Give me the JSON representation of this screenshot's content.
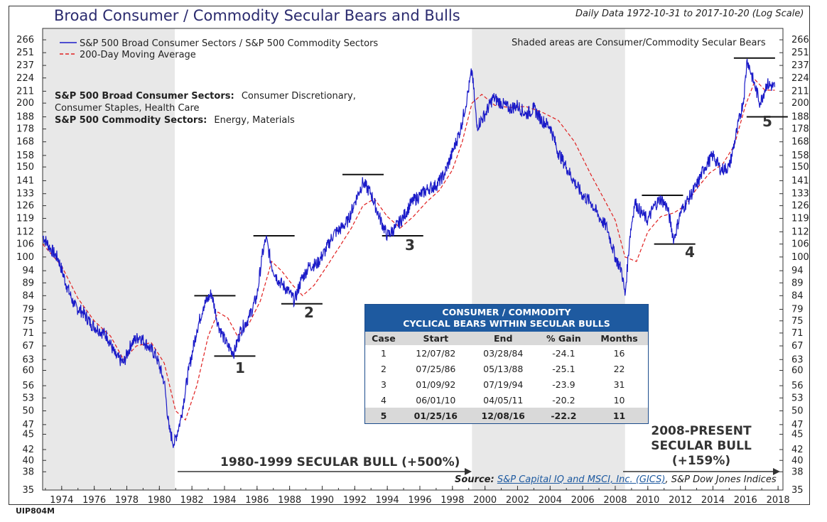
{
  "header": {
    "title": "Broad Consumer / Commodity Secular Bears and Bulls",
    "subtitle": "Daily Data 1972-10-31 to 2017-10-20 (Log Scale)",
    "code": "UIP804M"
  },
  "colors": {
    "series": "#1a1ac8",
    "ma": "#e02020",
    "shade": "#e8e8e8",
    "table_header": "#1e5aa0"
  },
  "legend": {
    "series_label": "S&P 500 Broad Consumer Sectors / S&P 500 Commodity Sectors",
    "ma_label": "200-Day Moving Average",
    "shade_note": "Shaded areas are Consumer/Commodity Secular Bears"
  },
  "definitions": {
    "consumer_label": "S&P 500 Broad Consumer Sectors:",
    "consumer_value": "Consumer Discretionary,",
    "consumer_value2": "Consumer Staples, Health Care",
    "commodity_label": "S&P 500 Commodity Sectors:",
    "commodity_value": "Energy, Materials"
  },
  "annotations": {
    "case_labels": [
      "1",
      "2",
      "3",
      "4",
      "5"
    ],
    "bull1": "1980-1999 SECULAR BULL (+500%)",
    "bull2_line1": "2008-PRESENT",
    "bull2_line2": "SECULAR BULL",
    "bull2_line3": "(+159%)"
  },
  "source": {
    "label": "Source:",
    "link": "S&P Capital IQ and MSCI, Inc. (GICS)",
    "rest": ", S&P Dow Jones Indices"
  },
  "table": {
    "title_line1": "CONSUMER / COMMODITY",
    "title_line2": "CYCLICAL BEARS WITHIN SECULAR BULLS",
    "columns": [
      "Case",
      "Start",
      "End",
      "% Gain",
      "Months"
    ],
    "rows": [
      [
        "1",
        "12/07/82",
        "03/28/84",
        "-24.1",
        "16"
      ],
      [
        "2",
        "07/25/86",
        "05/13/88",
        "-25.1",
        "22"
      ],
      [
        "3",
        "01/09/92",
        "07/19/94",
        "-23.9",
        "31"
      ],
      [
        "4",
        "06/01/10",
        "04/05/11",
        "-20.2",
        "10"
      ],
      [
        "5",
        "01/25/16",
        "12/08/16",
        "-22.2",
        "11"
      ]
    ]
  },
  "chart_data": {
    "type": "line",
    "title": "Broad Consumer / Commodity Secular Bears and Bulls",
    "scale": "log",
    "xlim": [
      1972.83,
      2018.3
    ],
    "ylim": [
      35,
      280
    ],
    "x_ticks": [
      "1974",
      "1976",
      "1978",
      "1980",
      "1982",
      "1984",
      "1986",
      "1988",
      "1990",
      "1992",
      "1994",
      "1996",
      "1998",
      "2000",
      "2002",
      "2004",
      "2006",
      "2008",
      "2010",
      "2012",
      "2014",
      "2016",
      "2018"
    ],
    "y_ticks": [
      "35",
      "38",
      "40",
      "42",
      "45",
      "47",
      "50",
      "53",
      "56",
      "60",
      "63",
      "67",
      "71",
      "75",
      "79",
      "84",
      "89",
      "94",
      "100",
      "106",
      "112",
      "119",
      "126",
      "133",
      "141",
      "150",
      "158",
      "168",
      "178",
      "188",
      "200",
      "211",
      "224",
      "237",
      "251",
      "266"
    ],
    "bear_periods": [
      [
        1972.83,
        1980.95
      ],
      [
        1999.2,
        2008.6
      ]
    ],
    "series": [
      {
        "name": "S&P 500 Broad Consumer Sectors / S&P 500 Commodity Sectors",
        "x": [
          1972.83,
          1973.3,
          1973.8,
          1974.3,
          1974.8,
          1975.3,
          1975.8,
          1976.3,
          1976.8,
          1977.3,
          1977.8,
          1978.3,
          1978.8,
          1979.3,
          1979.8,
          1980.3,
          1980.6,
          1980.9,
          1981.3,
          1981.8,
          1982.3,
          1982.7,
          1983.2,
          1983.6,
          1983.9,
          1984.2,
          1984.6,
          1985.0,
          1985.5,
          1986.0,
          1986.3,
          1986.55,
          1986.9,
          1987.3,
          1987.6,
          1987.9,
          1988.3,
          1988.7,
          1989.2,
          1989.7,
          1990.2,
          1990.7,
          1991.2,
          1991.6,
          1992.0,
          1992.5,
          1993.0,
          1993.5,
          1994.0,
          1994.5,
          1995.0,
          1995.5,
          1996.0,
          1996.5,
          1997.0,
          1997.5,
          1998.0,
          1998.5,
          1998.9,
          1999.2,
          1999.5,
          2000.0,
          2000.5,
          2001.0,
          2001.5,
          2002.0,
          2002.5,
          2003.0,
          2003.5,
          2004.0,
          2004.5,
          2005.0,
          2005.5,
          2006.0,
          2006.5,
          2007.0,
          2007.5,
          2008.0,
          2008.4,
          2008.6,
          2008.9,
          2009.2,
          2009.6,
          2010.0,
          2010.4,
          2010.8,
          2011.2,
          2011.6,
          2012.0,
          2012.5,
          2013.0,
          2013.5,
          2014.0,
          2014.5,
          2015.0,
          2015.5,
          2015.9,
          2016.1,
          2016.5,
          2016.9,
          2017.3,
          2017.8
        ],
        "values": [
          110,
          104,
          99,
          88,
          80,
          78,
          74,
          72,
          70,
          64,
          62,
          68,
          70,
          67,
          64,
          57,
          46,
          43,
          48,
          60,
          72,
          80,
          85,
          74,
          70,
          67,
          65,
          72,
          76,
          84,
          100,
          109,
          96,
          90,
          88,
          86,
          82,
          90,
          96,
          97,
          103,
          111,
          114,
          118,
          128,
          140,
          133,
          120,
          110,
          114,
          120,
          128,
          132,
          136,
          138,
          145,
          160,
          178,
          205,
          232,
          180,
          190,
          205,
          200,
          195,
          198,
          190,
          195,
          185,
          180,
          160,
          150,
          140,
          132,
          128,
          120,
          114,
          100,
          94,
          84,
          110,
          128,
          122,
          118,
          126,
          130,
          125,
          108,
          122,
          130,
          138,
          150,
          158,
          148,
          150,
          178,
          205,
          244,
          220,
          200,
          218,
          215
        ]
      },
      {
        "name": "200-Day Moving Average",
        "x": [
          1972.83,
          1974.0,
          1975.0,
          1976.0,
          1977.0,
          1977.8,
          1978.6,
          1979.5,
          1980.3,
          1981.0,
          1981.6,
          1982.3,
          1983.0,
          1983.6,
          1984.2,
          1984.8,
          1985.5,
          1986.2,
          1986.9,
          1987.5,
          1988.2,
          1988.8,
          1989.5,
          1990.2,
          1991.0,
          1991.8,
          1992.5,
          1993.2,
          1994.0,
          1994.8,
          1995.6,
          1996.4,
          1997.2,
          1998.0,
          1998.6,
          1999.2,
          1999.8,
          2000.6,
          2001.5,
          2002.5,
          2003.5,
          2004.5,
          2005.5,
          2006.5,
          2007.3,
          2008.0,
          2008.6,
          2009.3,
          2010.0,
          2010.8,
          2011.6,
          2012.3,
          2013.0,
          2013.8,
          2014.6,
          2015.3,
          2016.0,
          2016.6,
          2017.2,
          2017.8
        ],
        "values": [
          106,
          96,
          83,
          75,
          70,
          63,
          67,
          68,
          62,
          50,
          48,
          56,
          70,
          78,
          76,
          70,
          74,
          82,
          98,
          94,
          88,
          84,
          88,
          95,
          104,
          114,
          126,
          130,
          120,
          114,
          120,
          128,
          135,
          148,
          168,
          200,
          208,
          198,
          196,
          197,
          192,
          185,
          168,
          145,
          130,
          118,
          100,
          98,
          112,
          120,
          122,
          126,
          136,
          146,
          152,
          165,
          198,
          222,
          212,
          212
        ]
      }
    ],
    "case_markers": [
      {
        "case": "1",
        "peak": 84,
        "trough": 64,
        "start": 1982.93,
        "end": 1984.24
      },
      {
        "case": "2",
        "peak": 110,
        "trough": 81,
        "start": 1986.56,
        "end": 1988.36
      },
      {
        "case": "3",
        "peak": 145,
        "trough": 110,
        "start": 1992.03,
        "end": 1994.55
      },
      {
        "case": "4",
        "peak": 132,
        "trough": 106,
        "start": 2010.42,
        "end": 2011.26
      },
      {
        "case": "5",
        "peak": 245,
        "trough": 188,
        "start": 2016.07,
        "end": 2016.94
      }
    ]
  }
}
